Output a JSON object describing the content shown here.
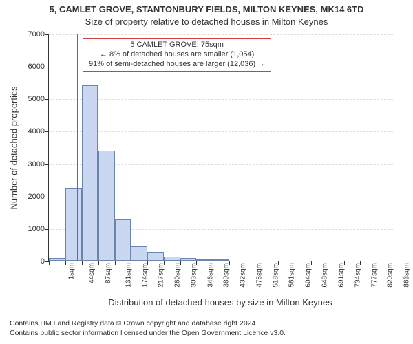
{
  "title_main": "5, CAMLET GROVE, STANTONBURY FIELDS, MILTON KEYNES, MK14 6TD",
  "title_sub": "Size of property relative to detached houses in Milton Keynes",
  "ylabel": "Number of detached properties",
  "xlabel": "Distribution of detached houses by size in Milton Keynes",
  "chart": {
    "type": "histogram",
    "background_color": "#ffffff",
    "bar_fill": "#c9d7f0",
    "bar_border": "#6b84b0",
    "grid_color": "#dddddd",
    "axis_color": "#333333",
    "vline_color": "#d04040",
    "font_family": "Arial",
    "title_fontsize": 13,
    "label_fontsize": 13,
    "tick_fontsize": 11,
    "xtick_fontsize": 10,
    "ylim": [
      0,
      7000
    ],
    "ytick_step": 1000,
    "yticks": [
      0,
      1000,
      2000,
      3000,
      4000,
      5000,
      6000,
      7000
    ],
    "vline_at_sqm": 75,
    "x_bin_width_sqm": 43,
    "x_start_sqm": 1,
    "x_end_sqm": 906,
    "xticks_sqm": [
      1,
      44,
      87,
      131,
      174,
      217,
      260,
      303,
      346,
      389,
      432,
      475,
      518,
      561,
      604,
      648,
      691,
      734,
      777,
      820,
      863
    ],
    "xtick_labels": [
      "1sqm",
      "44sqm",
      "87sqm",
      "131sqm",
      "174sqm",
      "217sqm",
      "260sqm",
      "303sqm",
      "346sqm",
      "389sqm",
      "432sqm",
      "475sqm",
      "518sqm",
      "561sqm",
      "604sqm",
      "648sqm",
      "691sqm",
      "734sqm",
      "777sqm",
      "820sqm",
      "863sqm"
    ],
    "bars": [
      {
        "start_sqm": 1,
        "count": 90
      },
      {
        "start_sqm": 44,
        "count": 2250
      },
      {
        "start_sqm": 87,
        "count": 5400
      },
      {
        "start_sqm": 131,
        "count": 3400
      },
      {
        "start_sqm": 174,
        "count": 1280
      },
      {
        "start_sqm": 217,
        "count": 450
      },
      {
        "start_sqm": 260,
        "count": 250
      },
      {
        "start_sqm": 303,
        "count": 130
      },
      {
        "start_sqm": 346,
        "count": 80
      },
      {
        "start_sqm": 389,
        "count": 40
      },
      {
        "start_sqm": 432,
        "count": 20
      }
    ]
  },
  "annotation": {
    "border_color": "#d04040",
    "background_color": "#ffffff",
    "fontsize": 11,
    "line1": "5 CAMLET GROVE: 75sqm",
    "line2": "← 8% of detached houses are smaller (1,054)",
    "line3": "91% of semi-detached houses are larger (12,036) →"
  },
  "footer": {
    "line1": "Contains HM Land Registry data © Crown copyright and database right 2024.",
    "line2": "Contains public sector information licensed under the Open Government Licence v3.0."
  }
}
